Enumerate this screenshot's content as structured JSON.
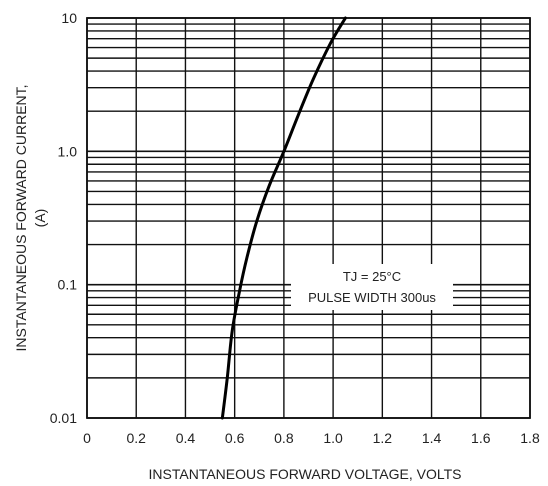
{
  "chart_data": {
    "type": "line",
    "xlabel": "INSTANTANEOUS FORWARD VOLTAGE, VOLTS",
    "ylabel_lines": [
      "INSTANTANEOUS FORWARD CURRENT,",
      "(A)"
    ],
    "xlim": [
      0,
      1.8
    ],
    "ylim": [
      0.01,
      10
    ],
    "yscale": "log",
    "grid": true,
    "x_ticks": [
      0,
      0.2,
      0.4,
      0.6,
      0.8,
      1.0,
      1.2,
      1.4,
      1.6,
      1.8
    ],
    "x_tick_labels": [
      "0",
      "0.2",
      "0.4",
      "0.6",
      "0.8",
      "1.0",
      "1.2",
      "1.4",
      "1.6",
      "1.8"
    ],
    "y_ticks": [
      0.01,
      0.1,
      1.0,
      10
    ],
    "y_tick_labels": [
      "0.01",
      "0.1",
      "1.0",
      "10"
    ],
    "annotations": [
      "TJ = 25°C",
      "PULSE WIDTH 300us"
    ],
    "series": [
      {
        "x": [
          0.55,
          0.57,
          0.59,
          0.62,
          0.65,
          0.69,
          0.74,
          0.8,
          0.86,
          0.92,
          0.99,
          1.05
        ],
        "y": [
          0.01,
          0.02,
          0.045,
          0.09,
          0.16,
          0.3,
          0.55,
          1.0,
          1.9,
          3.5,
          6.5,
          10
        ]
      }
    ]
  }
}
